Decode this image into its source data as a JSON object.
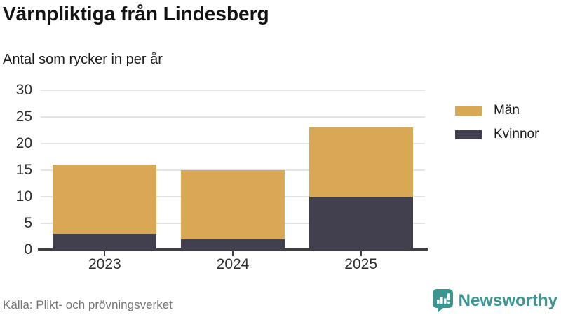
{
  "title": "Värnpliktiga från Lindesberg",
  "subtitle": "Antal som rycker in per år",
  "source": "Källa: Plikt- och prövningsverket",
  "brand": {
    "name": "Newsworthy",
    "color": "#3b9691"
  },
  "chart_data": {
    "type": "bar",
    "stacked": true,
    "title": "Värnpliktiga från Lindesberg",
    "subtitle": "Antal som rycker in per år",
    "categories": [
      "2023",
      "2024",
      "2025"
    ],
    "series": [
      {
        "name": "Kvinnor",
        "color": "#423f4e",
        "values": [
          3,
          2,
          10
        ]
      },
      {
        "name": "Män",
        "color": "#d8a855",
        "values": [
          13,
          13,
          13
        ]
      }
    ],
    "totals": [
      16,
      15,
      23
    ],
    "ylim": [
      0,
      30
    ],
    "yticks": [
      0,
      5,
      10,
      15,
      20,
      25,
      30
    ],
    "xlabel": "",
    "ylabel": "",
    "grid": "horizontal",
    "legend_position": "right-top",
    "legend": [
      {
        "label": "Män",
        "color": "#d8a855"
      },
      {
        "label": "Kvinnor",
        "color": "#423f4e"
      }
    ]
  }
}
